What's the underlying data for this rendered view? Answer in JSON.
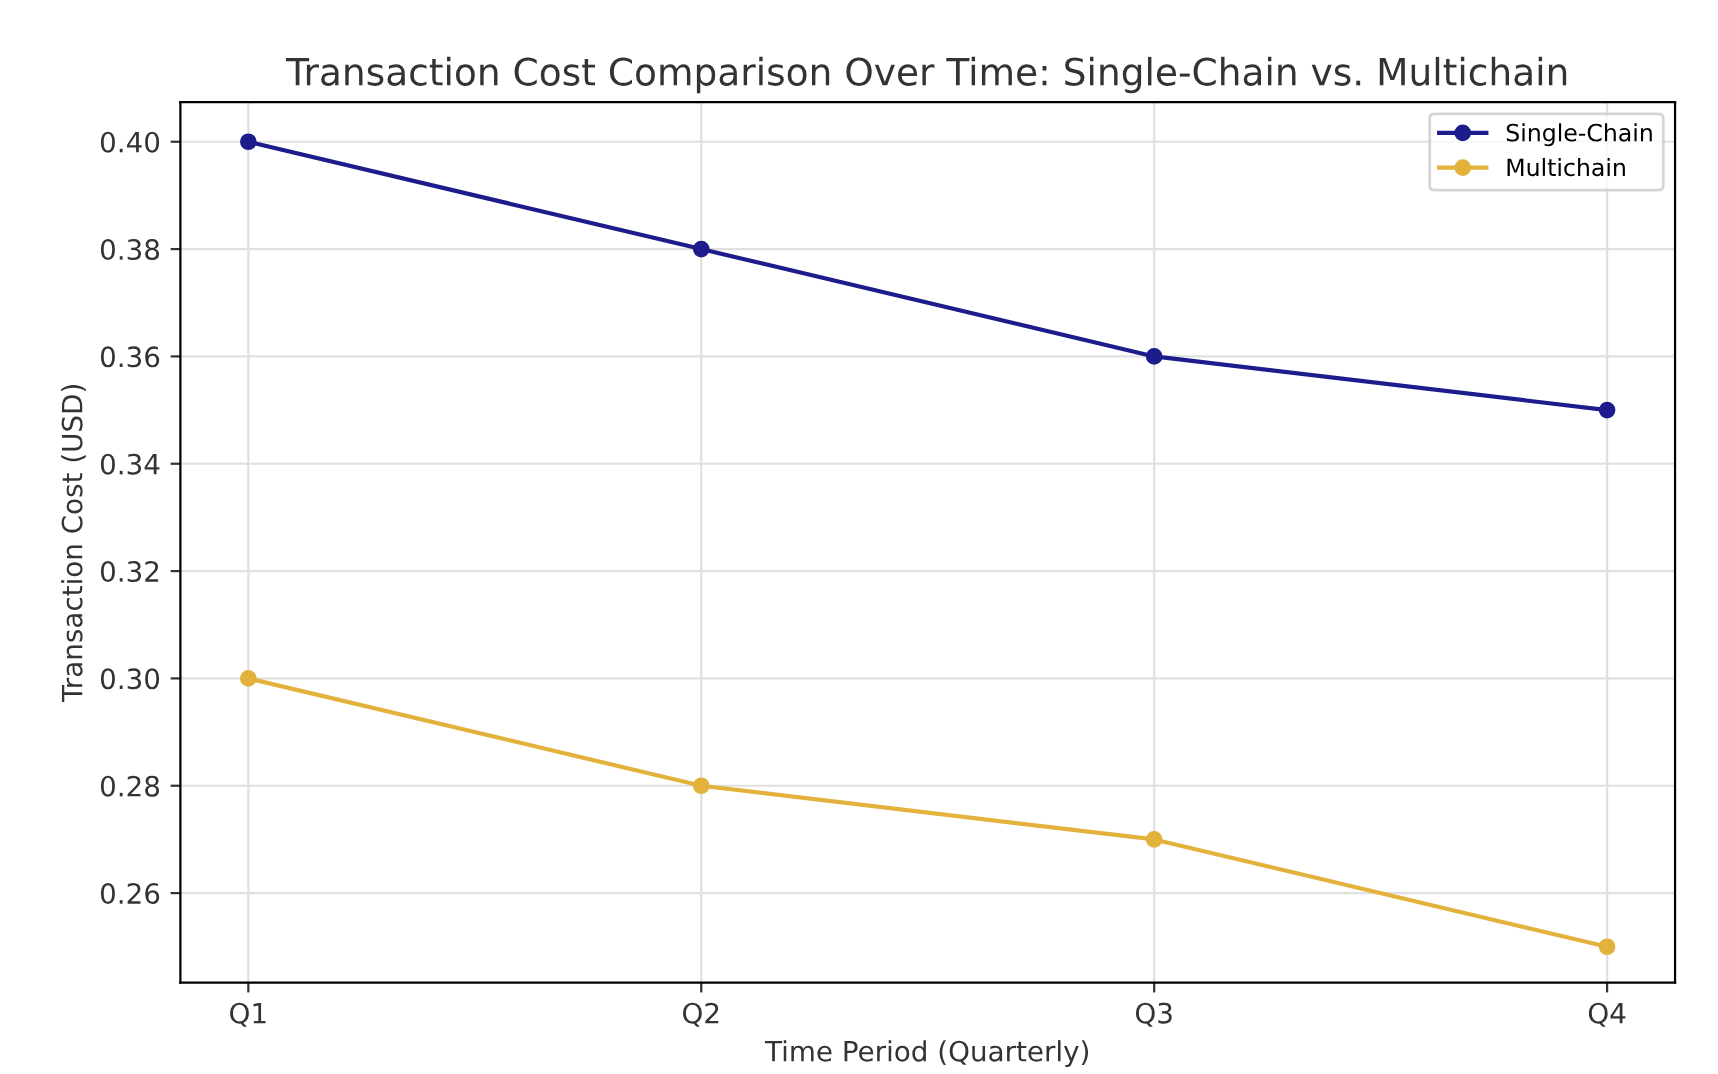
{
  "chart_data": {
    "type": "line",
    "title": "Transaction Cost Comparison Over Time: Single-Chain vs. Multichain",
    "xlabel": "Time Period (Quarterly)",
    "ylabel": "Transaction Cost (USD)",
    "categories": [
      "Q1",
      "Q2",
      "Q3",
      "Q4"
    ],
    "series": [
      {
        "name": "Single-Chain",
        "color": "#1c1c8c",
        "values": [
          0.4,
          0.38,
          0.36,
          0.35
        ]
      },
      {
        "name": "Multichain",
        "color": "#e3b23c",
        "values": [
          0.3,
          0.28,
          0.27,
          0.25
        ]
      }
    ],
    "ylim": [
      0.2433,
      0.4074
    ],
    "yticks": [
      {
        "value": 0.26,
        "label": "0.26"
      },
      {
        "value": 0.28,
        "label": "0.28"
      },
      {
        "value": 0.3,
        "label": "0.30"
      },
      {
        "value": 0.32,
        "label": "0.32"
      },
      {
        "value": 0.34,
        "label": "0.34"
      },
      {
        "value": 0.36,
        "label": "0.36"
      },
      {
        "value": 0.38,
        "label": "0.38"
      },
      {
        "value": 0.4,
        "label": "0.40"
      }
    ],
    "grid": true,
    "legend": "top right",
    "marker": "circle",
    "line_style": "solid"
  }
}
